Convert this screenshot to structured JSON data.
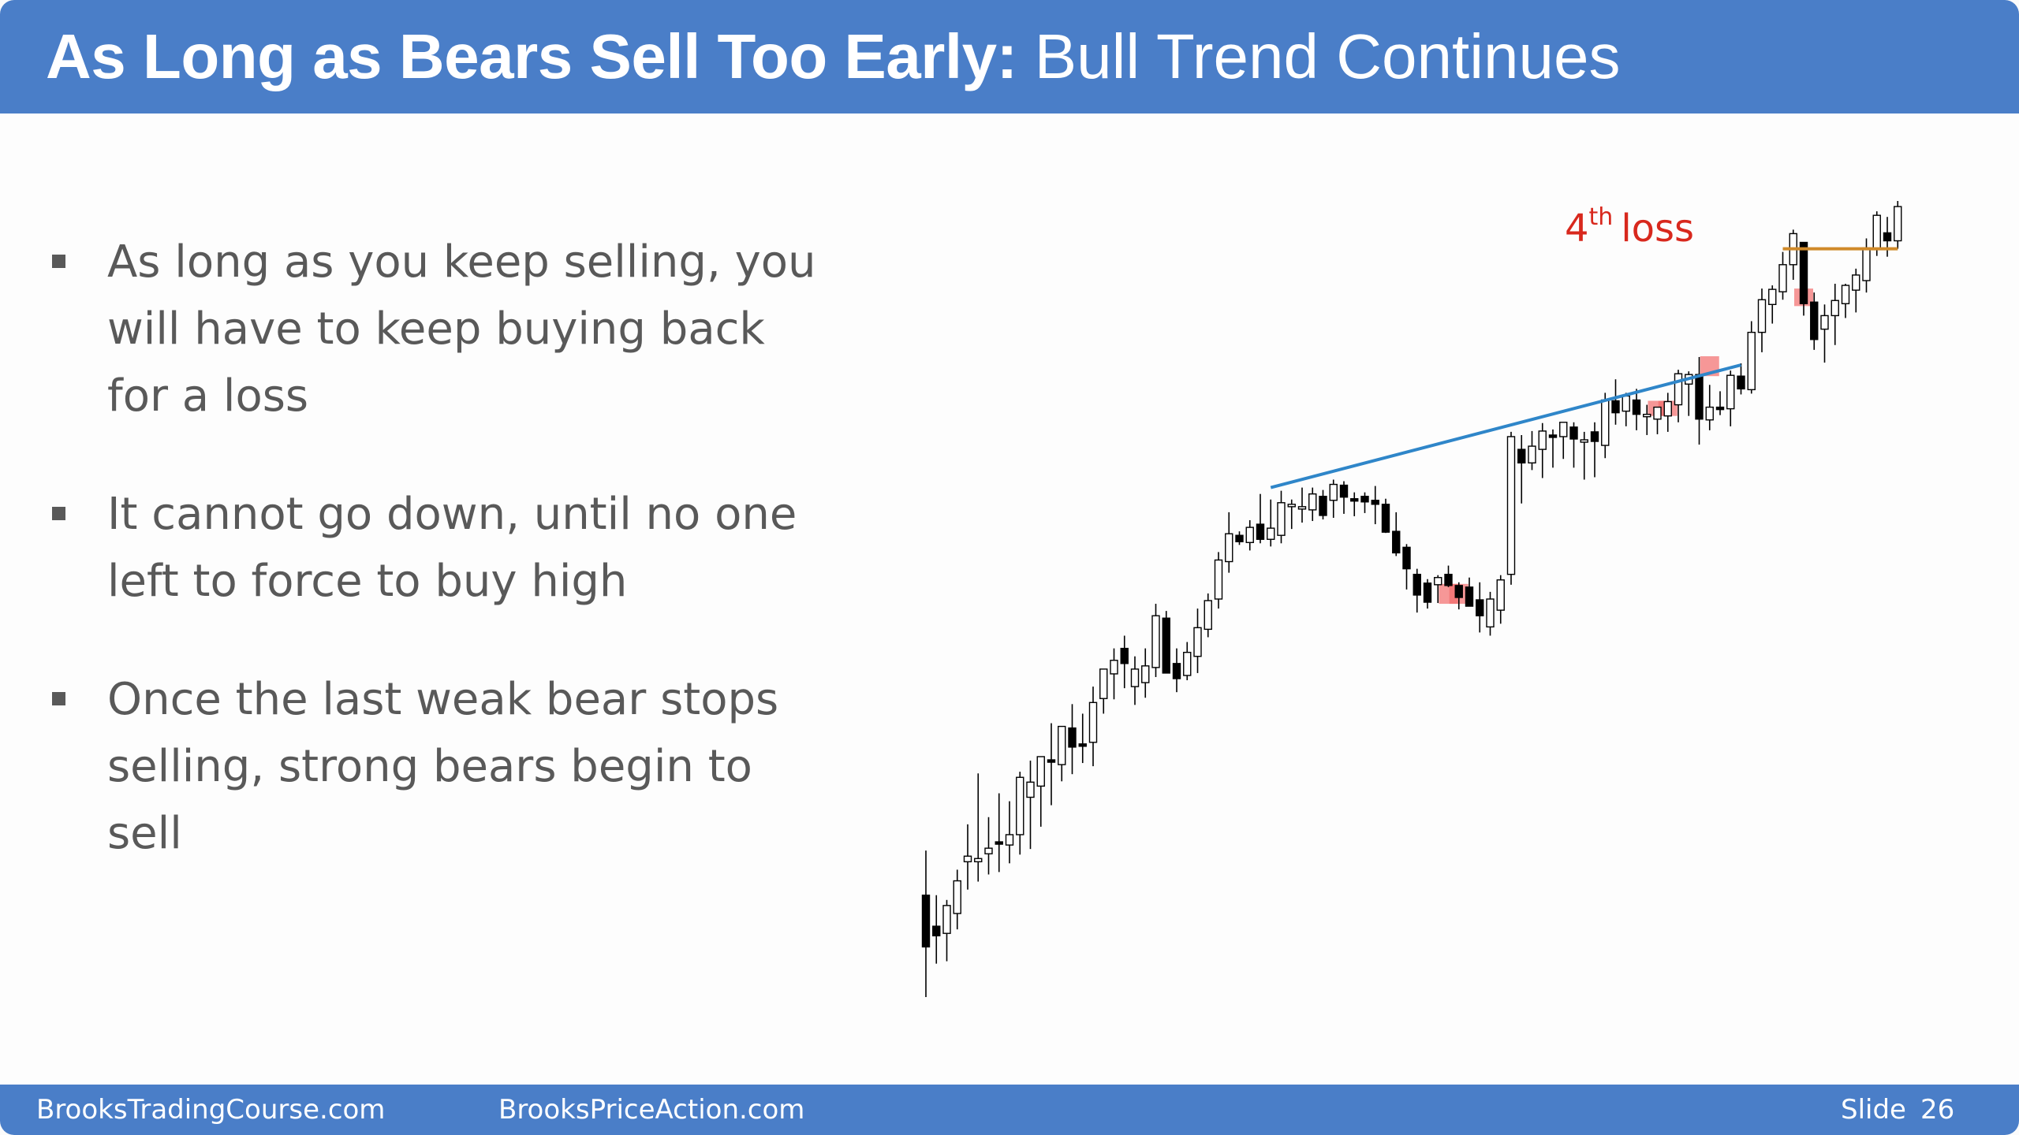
{
  "slide": {
    "title_bold": "As Long as Bears Sell Too Early:",
    "title_rest": "Bull Trend Continues",
    "bullets": [
      "As long as you keep selling, you will have to keep buying back for a loss",
      "It cannot go down, until no one left to force to buy high",
      "Once the last weak bear stops selling, strong bears begin to sell"
    ],
    "annotation": {
      "ordinal": "4",
      "suffix": "th",
      "text": "loss"
    }
  },
  "footer": {
    "left_site": "BrooksTradingCourse.com",
    "center_site": "BrooksPriceAction.com",
    "slide_label": "Slide",
    "slide_number": "26"
  },
  "colors": {
    "header_bg": "#4a7ec8",
    "bull_bar": "#ffffff",
    "bear_bar": "#000000",
    "wick": "#000000",
    "trendline": "#2f86c9",
    "stop_line": "#d08a2a",
    "entry_highlight": "#f26b6b",
    "annotation": "#d8281d"
  },
  "chart_data": {
    "type": "candlestick",
    "title": "",
    "xlabel": "",
    "ylabel": "",
    "price_range": [
      0,
      100
    ],
    "note": "Values are relative prices estimated from an unlabeled chart (0 = chart low, 100 = chart high).",
    "bars": [
      {
        "o": 12.8,
        "h": 18.4,
        "l": 0.0,
        "c": 6.3
      },
      {
        "o": 8.9,
        "h": 12.8,
        "l": 4.2,
        "c": 7.7
      },
      {
        "o": 8.0,
        "h": 12.2,
        "l": 4.5,
        "c": 11.5
      },
      {
        "o": 10.5,
        "h": 16.0,
        "l": 8.5,
        "c": 14.6
      },
      {
        "o": 17.0,
        "h": 21.7,
        "l": 13.5,
        "c": 17.7
      },
      {
        "o": 17.0,
        "h": 28.1,
        "l": 14.5,
        "c": 17.4
      },
      {
        "o": 18.0,
        "h": 22.6,
        "l": 15.4,
        "c": 18.7
      },
      {
        "o": 19.5,
        "h": 25.6,
        "l": 15.7,
        "c": 19.3
      },
      {
        "o": 19.1,
        "h": 24.6,
        "l": 16.8,
        "c": 20.4
      },
      {
        "o": 20.4,
        "h": 28.3,
        "l": 17.9,
        "c": 27.6
      },
      {
        "o": 25.1,
        "h": 29.7,
        "l": 18.6,
        "c": 27.0
      },
      {
        "o": 26.5,
        "h": 30.2,
        "l": 21.4,
        "c": 30.2
      },
      {
        "o": 29.8,
        "h": 34.4,
        "l": 24.1,
        "c": 29.5
      },
      {
        "o": 29.2,
        "h": 32.5,
        "l": 27.1,
        "c": 34.0
      },
      {
        "o": 33.8,
        "h": 36.8,
        "l": 28.0,
        "c": 31.4
      },
      {
        "o": 31.8,
        "h": 35.6,
        "l": 29.4,
        "c": 31.6
      },
      {
        "o": 32.0,
        "h": 39.0,
        "l": 29.0,
        "c": 37.0
      },
      {
        "o": 37.5,
        "h": 40.4,
        "l": 35.6,
        "c": 41.2
      },
      {
        "o": 40.6,
        "h": 43.8,
        "l": 37.4,
        "c": 42.3
      },
      {
        "o": 43.8,
        "h": 45.4,
        "l": 38.8,
        "c": 41.9
      },
      {
        "o": 39.0,
        "h": 42.8,
        "l": 36.7,
        "c": 41.2
      },
      {
        "o": 39.5,
        "h": 43.8,
        "l": 37.6,
        "c": 41.6
      },
      {
        "o": 41.4,
        "h": 49.4,
        "l": 40.2,
        "c": 47.9
      },
      {
        "o": 47.6,
        "h": 48.5,
        "l": 41.7,
        "c": 40.7
      },
      {
        "o": 41.9,
        "h": 43.8,
        "l": 38.3,
        "c": 40.0
      },
      {
        "o": 40.4,
        "h": 44.6,
        "l": 39.8,
        "c": 43.3
      },
      {
        "o": 42.8,
        "h": 48.8,
        "l": 40.7,
        "c": 46.4
      },
      {
        "o": 46.2,
        "h": 50.7,
        "l": 45.2,
        "c": 49.8
      },
      {
        "o": 50.0,
        "h": 55.9,
        "l": 48.8,
        "c": 54.9
      },
      {
        "o": 54.7,
        "h": 60.9,
        "l": 53.3,
        "c": 58.2
      },
      {
        "o": 58.0,
        "h": 58.5,
        "l": 56.8,
        "c": 57.2
      },
      {
        "o": 57.1,
        "h": 59.9,
        "l": 56.1,
        "c": 59.0
      },
      {
        "o": 59.4,
        "h": 63.2,
        "l": 57.0,
        "c": 57.5
      },
      {
        "o": 57.5,
        "h": 62.5,
        "l": 56.6,
        "c": 58.9
      },
      {
        "o": 58.0,
        "h": 63.6,
        "l": 57.0,
        "c": 62.1
      },
      {
        "o": 61.6,
        "h": 62.5,
        "l": 58.8,
        "c": 61.9
      },
      {
        "o": 61.6,
        "h": 64.0,
        "l": 59.6,
        "c": 61.6
      },
      {
        "o": 61.2,
        "h": 64.0,
        "l": 59.8,
        "c": 63.2
      },
      {
        "o": 62.9,
        "h": 63.7,
        "l": 60.0,
        "c": 60.5
      },
      {
        "o": 62.4,
        "h": 65.0,
        "l": 60.2,
        "c": 64.4
      },
      {
        "o": 64.3,
        "h": 64.8,
        "l": 60.7,
        "c": 62.8
      },
      {
        "o": 62.6,
        "h": 63.4,
        "l": 60.4,
        "c": 62.4
      },
      {
        "o": 62.9,
        "h": 63.4,
        "l": 60.8,
        "c": 62.2
      },
      {
        "o": 62.4,
        "h": 64.2,
        "l": 59.4,
        "c": 61.9
      },
      {
        "o": 61.9,
        "h": 62.6,
        "l": 58.3,
        "c": 58.4
      },
      {
        "o": 58.5,
        "h": 60.9,
        "l": 55.4,
        "c": 55.8
      },
      {
        "o": 56.5,
        "h": 56.9,
        "l": 51.2,
        "c": 53.8
      },
      {
        "o": 53.1,
        "h": 53.8,
        "l": 48.3,
        "c": 50.5
      },
      {
        "o": 52.0,
        "h": 52.5,
        "l": 48.8,
        "c": 49.6
      },
      {
        "o": 51.8,
        "h": 53.0,
        "l": 49.5,
        "c": 52.7
      },
      {
        "o": 53.1,
        "h": 54.2,
        "l": 51.5,
        "c": 51.7
      },
      {
        "o": 51.7,
        "h": 52.1,
        "l": 48.7,
        "c": 50.2
      },
      {
        "o": 51.5,
        "h": 52.7,
        "l": 49.3,
        "c": 49.1
      },
      {
        "o": 49.9,
        "h": 52.1,
        "l": 45.8,
        "c": 47.9
      },
      {
        "o": 46.5,
        "h": 50.9,
        "l": 45.4,
        "c": 50.0
      },
      {
        "o": 48.6,
        "h": 53.0,
        "l": 46.9,
        "c": 52.4
      },
      {
        "o": 53.1,
        "h": 71.0,
        "l": 51.8,
        "c": 70.4
      },
      {
        "o": 68.8,
        "h": 70.6,
        "l": 62.0,
        "c": 67.1
      },
      {
        "o": 67.1,
        "h": 71.1,
        "l": 66.2,
        "c": 69.2
      },
      {
        "o": 68.8,
        "h": 72.1,
        "l": 65.2,
        "c": 71.1
      },
      {
        "o": 70.6,
        "h": 71.3,
        "l": 66.5,
        "c": 70.4
      },
      {
        "o": 70.4,
        "h": 72.2,
        "l": 67.6,
        "c": 72.2
      },
      {
        "o": 71.6,
        "h": 72.2,
        "l": 66.5,
        "c": 70.1
      },
      {
        "o": 70.0,
        "h": 71.0,
        "l": 65.0,
        "c": 70.0
      },
      {
        "o": 71.0,
        "h": 72.2,
        "l": 65.3,
        "c": 69.8
      },
      {
        "o": 69.3,
        "h": 75.9,
        "l": 67.7,
        "c": 75.0
      },
      {
        "o": 74.9,
        "h": 77.6,
        "l": 71.9,
        "c": 73.4
      },
      {
        "o": 73.6,
        "h": 75.9,
        "l": 71.7,
        "c": 75.5
      },
      {
        "o": 75.0,
        "h": 76.4,
        "l": 71.2,
        "c": 73.2
      },
      {
        "o": 73.0,
        "h": 74.4,
        "l": 70.6,
        "c": 73.2
      },
      {
        "o": 72.6,
        "h": 74.1,
        "l": 70.7,
        "c": 74.1
      },
      {
        "o": 73.0,
        "h": 75.9,
        "l": 71.0,
        "c": 74.8
      },
      {
        "o": 74.4,
        "h": 78.8,
        "l": 72.2,
        "c": 78.3
      },
      {
        "o": 77.0,
        "h": 78.6,
        "l": 73.0,
        "c": 78.2
      },
      {
        "o": 78.2,
        "h": 80.4,
        "l": 69.4,
        "c": 72.6
      },
      {
        "o": 72.5,
        "h": 76.9,
        "l": 71.2,
        "c": 74.1
      },
      {
        "o": 74.1,
        "h": 76.1,
        "l": 73.1,
        "c": 73.8
      },
      {
        "o": 73.9,
        "h": 78.7,
        "l": 71.7,
        "c": 78.1
      },
      {
        "o": 78.0,
        "h": 79.6,
        "l": 75.7,
        "c": 76.4
      },
      {
        "o": 76.3,
        "h": 84.9,
        "l": 75.8,
        "c": 83.5
      },
      {
        "o": 83.5,
        "h": 89.0,
        "l": 81.0,
        "c": 87.6
      },
      {
        "o": 87.0,
        "h": 89.4,
        "l": 84.6,
        "c": 88.9
      },
      {
        "o": 88.6,
        "h": 93.6,
        "l": 87.6,
        "c": 92.0
      },
      {
        "o": 92.0,
        "h": 96.4,
        "l": 90.1,
        "c": 95.9
      },
      {
        "o": 94.8,
        "h": 94.8,
        "l": 85.6,
        "c": 87.1
      },
      {
        "o": 87.3,
        "h": 88.5,
        "l": 81.3,
        "c": 82.6
      },
      {
        "o": 83.9,
        "h": 87.0,
        "l": 79.7,
        "c": 85.6
      },
      {
        "o": 85.6,
        "h": 89.6,
        "l": 81.9,
        "c": 87.5
      },
      {
        "o": 87.1,
        "h": 89.6,
        "l": 85.3,
        "c": 89.4
      },
      {
        "o": 88.8,
        "h": 91.5,
        "l": 86.0,
        "c": 90.7
      },
      {
        "o": 90.0,
        "h": 95.3,
        "l": 88.5,
        "c": 94.1
      },
      {
        "o": 94.0,
        "h": 98.7,
        "l": 93.1,
        "c": 98.2
      },
      {
        "o": 96.0,
        "h": 98.0,
        "l": 93.0,
        "c": 95.0
      },
      {
        "o": 95.0,
        "h": 100.0,
        "l": 94.0,
        "c": 99.3
      }
    ],
    "trendline": {
      "from_bar": 33,
      "from_price": 64.0,
      "to_bar": 78,
      "to_price": 79.4
    },
    "stop_line": {
      "from_bar": 82,
      "to_bar": 93,
      "price": 94.0
    },
    "highlights": [
      {
        "bar": 50,
        "low": 49.4,
        "high": 51.9
      },
      {
        "bar": 51,
        "low": 49.4,
        "high": 51.9
      },
      {
        "bar": 70,
        "low": 73.0,
        "high": 74.9
      },
      {
        "bar": 71,
        "low": 73.0,
        "high": 74.9
      },
      {
        "bar": 75,
        "low": 78.0,
        "high": 80.5
      },
      {
        "bar": 84,
        "low": 86.8,
        "high": 89.0
      }
    ]
  }
}
